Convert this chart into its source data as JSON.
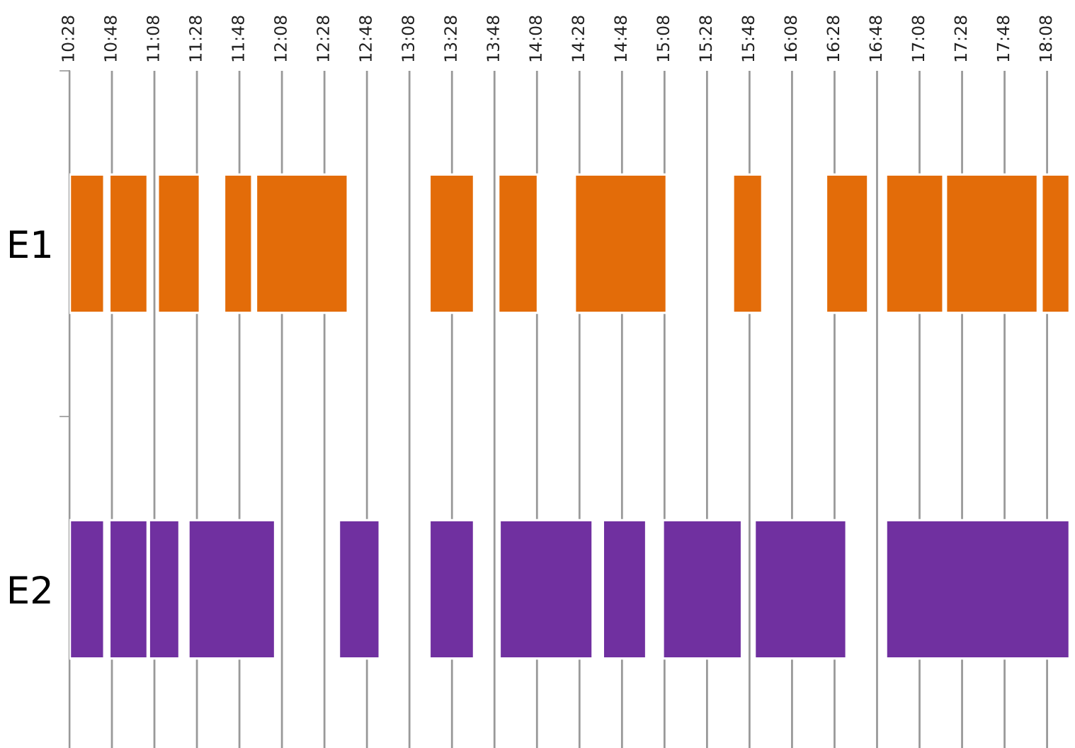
{
  "chart_data": {
    "type": "bar",
    "orientation": "horizontal",
    "categories": [
      "E1",
      "E2"
    ],
    "series": [
      {
        "colors": [
          "#e36c09",
          "#7030a0"
        ],
        "base": [
          10.47,
          10.47
        ],
        "values": [
          0.27,
          0.27
        ]
      },
      {
        "colors": [
          "#e36c09",
          "#7030a0"
        ],
        "base": [
          10.78,
          10.78
        ],
        "values": [
          0.3,
          0.3
        ]
      },
      {
        "colors": [
          "#e36c09",
          "#7030a0"
        ],
        "base": [
          11.16,
          11.09
        ],
        "values": [
          0.33,
          0.24
        ]
      },
      {
        "colors": [
          "#e36c09",
          "#7030a0"
        ],
        "base": [
          11.68,
          11.4
        ],
        "values": [
          0.22,
          0.68
        ]
      },
      {
        "colors": [
          "#e36c09",
          "#7030a0"
        ],
        "base": [
          11.93,
          12.58
        ],
        "values": [
          0.72,
          0.32
        ]
      },
      {
        "colors": [
          "#e36c09",
          "#7030a0"
        ],
        "base": [
          13.29,
          13.29
        ],
        "values": [
          0.35,
          0.35
        ]
      },
      {
        "colors": [
          "#e36c09",
          "#7030a0"
        ],
        "base": [
          13.83,
          13.84
        ],
        "values": [
          0.31,
          0.73
        ]
      },
      {
        "colors": [
          "#e36c09",
          "#7030a0"
        ],
        "base": [
          14.43,
          14.65
        ],
        "values": [
          0.72,
          0.34
        ]
      },
      {
        "colors": [
          "#e36c09",
          "#7030a0"
        ],
        "base": [
          15.67,
          15.12
        ],
        "values": [
          0.23,
          0.62
        ]
      },
      {
        "colors": [
          "#e36c09",
          "#7030a0"
        ],
        "base": [
          16.4,
          15.84
        ],
        "values": [
          0.33,
          0.72
        ]
      },
      {
        "colors": [
          "#e36c09",
          "#7030a0"
        ],
        "base": [
          16.87,
          16.87
        ],
        "values": [
          0.45,
          1.44
        ]
      },
      {
        "colors": [
          "#e36c09",
          null
        ],
        "base": [
          17.34,
          null
        ],
        "values": [
          0.72,
          null
        ]
      },
      {
        "colors": [
          "#e36c09",
          null
        ],
        "base": [
          18.09,
          null
        ],
        "values": [
          0.22,
          null
        ]
      }
    ],
    "xlim": [
      10.4667,
      18.33
    ],
    "xticks": [
      {
        "value": 10.4667,
        "label": "10:28"
      },
      {
        "value": 10.8,
        "label": "10:48"
      },
      {
        "value": 11.1333,
        "label": "11:08"
      },
      {
        "value": 11.4667,
        "label": "11:28"
      },
      {
        "value": 11.8,
        "label": "11:48"
      },
      {
        "value": 12.1333,
        "label": "12:08"
      },
      {
        "value": 12.4667,
        "label": "12:28"
      },
      {
        "value": 12.8,
        "label": "12:48"
      },
      {
        "value": 13.1333,
        "label": "13:08"
      },
      {
        "value": 13.4667,
        "label": "13:28"
      },
      {
        "value": 13.8,
        "label": "13:48"
      },
      {
        "value": 14.1333,
        "label": "14:08"
      },
      {
        "value": 14.4667,
        "label": "14:28"
      },
      {
        "value": 14.8,
        "label": "14:48"
      },
      {
        "value": 15.1333,
        "label": "15:08"
      },
      {
        "value": 15.4667,
        "label": "15:28"
      },
      {
        "value": 15.8,
        "label": "15:48"
      },
      {
        "value": 16.1333,
        "label": "16:08"
      },
      {
        "value": 16.4667,
        "label": "16:28"
      },
      {
        "value": 16.8,
        "label": "16:48"
      },
      {
        "value": 17.1333,
        "label": "17:08"
      },
      {
        "value": 17.4667,
        "label": "17:28"
      },
      {
        "value": 17.8,
        "label": "17:48"
      },
      {
        "value": 18.1333,
        "label": "18:08"
      }
    ],
    "grid": "x"
  }
}
